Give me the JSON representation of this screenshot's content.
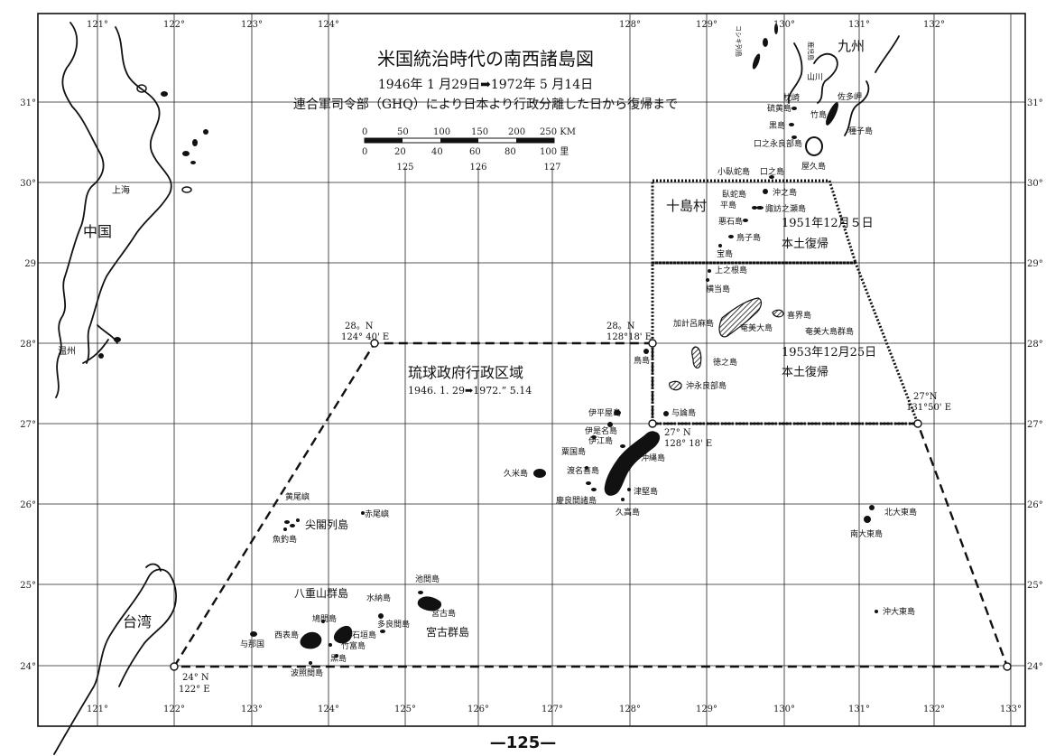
{
  "title": "米国統治時代の南西諸島図",
  "subtitle": "1946年 1 月29日➡1972年 5 月14日",
  "subtitle2": "連合軍司令部（GHQ）により日本より行政分離した日から復帰まで",
  "scale": {
    "km_ticks": [
      "0",
      "50",
      "100",
      "150",
      "200",
      "250 KM"
    ],
    "ri_ticks": [
      "0",
      "20",
      "40",
      "60",
      "80",
      "100 里"
    ]
  },
  "lon_top": [
    {
      "lon": 121,
      "label": "121°"
    },
    {
      "lon": 122,
      "label": "122°"
    },
    {
      "lon": 123,
      "label": "123°"
    },
    {
      "lon": 124,
      "label": "124°"
    },
    {
      "lon": 128,
      "label": "128°"
    },
    {
      "lon": 129,
      "label": "129°"
    },
    {
      "lon": 130,
      "label": "130°"
    },
    {
      "lon": 131,
      "label": "131°"
    },
    {
      "lon": 132,
      "label": "132°"
    }
  ],
  "lon_mid": [
    {
      "lon": 125,
      "label": "125"
    },
    {
      "lon": 126,
      "label": "126"
    },
    {
      "lon": 127,
      "label": "127"
    }
  ],
  "lon_bottom": [
    {
      "lon": 121,
      "label": "121°"
    },
    {
      "lon": 122,
      "label": "122°"
    },
    {
      "lon": 123,
      "label": "123°"
    },
    {
      "lon": 124,
      "label": "124°"
    },
    {
      "lon": 125,
      "label": "125°"
    },
    {
      "lon": 126,
      "label": "126°"
    },
    {
      "lon": 127,
      "label": "127°"
    },
    {
      "lon": 128,
      "label": "128°"
    },
    {
      "lon": 129,
      "label": "129°"
    },
    {
      "lon": 130,
      "label": "130°"
    },
    {
      "lon": 131,
      "label": "131°"
    },
    {
      "lon": 132,
      "label": "132°"
    },
    {
      "lon": 133,
      "label": "133°"
    }
  ],
  "lat_left": [
    {
      "lat": 31,
      "label": "31°"
    },
    {
      "lat": 30,
      "label": "30°"
    },
    {
      "lat": 29,
      "label": "29"
    },
    {
      "lat": 28,
      "label": "28°"
    },
    {
      "lat": 27,
      "label": "27°"
    },
    {
      "lat": 26,
      "label": "26°"
    },
    {
      "lat": 25,
      "label": "25°"
    },
    {
      "lat": 24,
      "label": "24°"
    }
  ],
  "lat_right": [
    {
      "lat": 31,
      "label": "31°"
    },
    {
      "lat": 30,
      "label": "30°"
    },
    {
      "lat": 29,
      "label": "29°"
    },
    {
      "lat": 28,
      "label": "28°"
    },
    {
      "lat": 27,
      "label": "27°"
    },
    {
      "lat": 26,
      "label": "26°"
    },
    {
      "lat": 25,
      "label": "25°"
    },
    {
      "lat": 24,
      "label": "24°"
    }
  ],
  "corner_labels": {
    "nw_a": "28。N",
    "nw_b": "124° 40' E",
    "ne_a": "28。N",
    "ne_b": "128°18' E",
    "mid_a": "27° N",
    "mid_b": "128° 18' E",
    "re_a": "27°N",
    "re_b": "131°50' E",
    "sw_a": "24° N",
    "sw_b": "122° E"
  },
  "zone_labels": {
    "ryukyu": "琉球政府行政区域",
    "ryukyu_dates": "1946. 1. 29➡1972.” 5.14",
    "toshima": "十島村",
    "toshima_date": "1951年12月５日",
    "toshima_ret": "本土復帰",
    "amami_date": "1953年12月25日",
    "amami_ret": "本土復帰"
  },
  "regions": {
    "china": "中国",
    "taiwan": "台湾",
    "kyushu": "九州",
    "shanghai": "上海",
    "wenzhou": "温州"
  },
  "places": {
    "koshiki": "コシキ列島",
    "kagoshima": "鹿児島",
    "yamakawa": "山川",
    "makurazaki": "枕崎",
    "satamisaki": "佐多岬",
    "iojima": "硫黄島",
    "takeshima": "竹島",
    "kuroshima": "黒島",
    "tanegashima": "種子島",
    "kuchinoerabu": "口之永良部島",
    "yakushima": "屋久島",
    "kotakara": "小臥蛇島",
    "kuchinoshima": "口之島",
    "gajajima": "臥蛇島",
    "nakanoshima": "沖之島",
    "tairajima": "平島",
    "suwanose": "諏訪之瀬島",
    "akusekijima": "悪石島",
    "kodakara": "鳥子島",
    "takarajima": "宝島",
    "kaminone": "上之根島",
    "yokoate": "横当島",
    "kakeroma": "加計呂麻島",
    "amami_oshima": "奄美大島",
    "kikai": "喜界島",
    "amami_gunto": "奄美大島群島",
    "torishima": "鳥島",
    "tokunoshima": "徳之島",
    "okinoerabu": "沖永良部島",
    "yoron": "与論島",
    "iheya": "伊平屋島",
    "izena": "伊是名島",
    "iejima": "伊江島",
    "aguni": "粟国島",
    "kumejima": "久米島",
    "tonaki": "渡名喜島",
    "kerama": "慶良間諸島",
    "okinawa": "沖縄島",
    "tsuken": "津堅島",
    "kudaka": "久高島",
    "kitadaito": "北大東島",
    "minamidaito": "南大東島",
    "okidaito": "沖大東島",
    "kobisho": "黄尾嶼",
    "sekibisho": "赤尾嶼",
    "senkaku": "尖閣列島",
    "uotsuri": "魚釣島",
    "yaeyama": "八重山群島",
    "hatoma": "鳩間島",
    "minna": "水納島",
    "tarama": "多良間島",
    "ikema": "池間島",
    "miyako": "宮古島",
    "miyako_gunto": "宮古群島",
    "yonaguni": "与那国",
    "iriomote": "西表島",
    "ishigaki": "石垣島",
    "taketomi": "竹富島",
    "kuroshima_y": "黒島",
    "hateruma": "波照間島"
  },
  "page_number": "—125—"
}
